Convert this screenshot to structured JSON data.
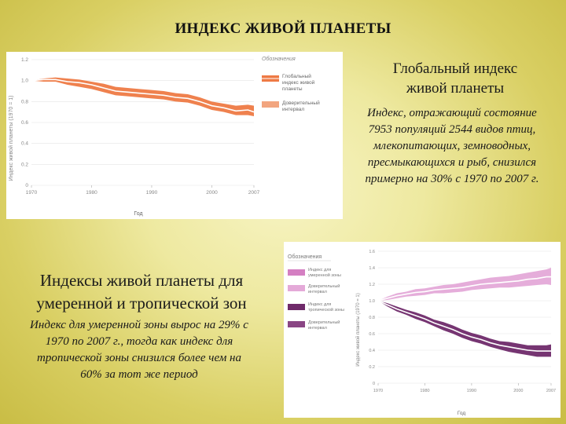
{
  "slide": {
    "title": "ИНДЕКС ЖИВОЙ ПЛАНЕТЫ",
    "global_heading_line1": "Глобальный индекс",
    "global_heading_line2": "живой планеты",
    "global_text": [
      "Индекс, отражающий состояние",
      "7953 популяций 2544 видов птиц,",
      "млекопитающих, земноводных,",
      "пресмыкающихся и рыб, снизился",
      "примерно на 30% с 1970 по 2007 г."
    ],
    "zones_heading_line1": "Индексы живой планеты для",
    "zones_heading_line2": "умеренной и тропической зон",
    "zones_text": [
      "Индекс для умеренной зоны вырос на 29% с",
      "1970 по 2007 г., тогда как индекс для",
      "тропической зоны снизился более чем на",
      "60% за тот же период"
    ]
  },
  "chart_data": [
    {
      "type": "line",
      "title": "",
      "xlabel": "Год",
      "ylabel": "Индекс живой планеты (1970 = 1)",
      "xlim": [
        1970,
        2007
      ],
      "ylim": [
        0,
        1.2
      ],
      "x_ticks": [
        "1970",
        "1980",
        "1990",
        "2000",
        "2007"
      ],
      "y_ticks": [
        "0",
        "0.2",
        "0.4",
        "0.6",
        "0.8",
        "1.0",
        "1.2"
      ],
      "legend_title": "Обозначения",
      "legend_position": "right",
      "colors": {
        "line": "#ee7a45",
        "band": "#f2a57f"
      },
      "series": [
        {
          "name": "Глобальный индекс живой планеты",
          "x": [
            1970,
            1972,
            1974,
            1976,
            1978,
            1980,
            1982,
            1984,
            1986,
            1988,
            1990,
            1992,
            1994,
            1996,
            1998,
            2000,
            2002,
            2004,
            2006,
            2007
          ],
          "values": [
            1.0,
            1.01,
            1.01,
            0.99,
            0.98,
            0.96,
            0.93,
            0.9,
            0.89,
            0.88,
            0.87,
            0.86,
            0.84,
            0.83,
            0.8,
            0.76,
            0.74,
            0.71,
            0.72,
            0.7
          ],
          "lower": [
            1.0,
            0.99,
            0.99,
            0.96,
            0.94,
            0.92,
            0.89,
            0.86,
            0.85,
            0.84,
            0.83,
            0.82,
            0.8,
            0.79,
            0.76,
            0.72,
            0.7,
            0.67,
            0.67,
            0.66
          ],
          "upper": [
            1.0,
            1.02,
            1.03,
            1.02,
            1.01,
            0.99,
            0.97,
            0.94,
            0.93,
            0.92,
            0.91,
            0.9,
            0.88,
            0.87,
            0.84,
            0.8,
            0.78,
            0.76,
            0.77,
            0.76
          ]
        }
      ],
      "legend": [
        "Глобальный индекс живой планеты",
        "Доверительный интервал"
      ]
    },
    {
      "type": "line",
      "title": "",
      "xlabel": "Год",
      "ylabel": "Индекс живой планеты (1970 = 1)",
      "xlim": [
        1970,
        2007
      ],
      "ylim": [
        0,
        1.6
      ],
      "x_ticks": [
        "1970",
        "1980",
        "1990",
        "2000",
        "2007"
      ],
      "y_ticks": [
        "0",
        "0.2",
        "0.4",
        "0.6",
        "0.8",
        "1.0",
        "1.2",
        "1.4",
        "1.6"
      ],
      "legend_title": "Обозначения",
      "legend_position": "left",
      "colors": {
        "temperate": "#d47fc2",
        "temperate_band": "#e4a9d8",
        "tropical": "#6f2a6a",
        "tropical_band": "#8a4684"
      },
      "series": [
        {
          "name": "Индекс для умеренной зоны",
          "x": [
            1970,
            1972,
            1974,
            1976,
            1978,
            1980,
            1982,
            1984,
            1986,
            1988,
            1990,
            1992,
            1994,
            1996,
            1998,
            2000,
            2002,
            2004,
            2006,
            2007
          ],
          "values": [
            1.0,
            1.03,
            1.06,
            1.08,
            1.1,
            1.11,
            1.13,
            1.14,
            1.15,
            1.16,
            1.18,
            1.2,
            1.21,
            1.22,
            1.23,
            1.24,
            1.26,
            1.27,
            1.29,
            1.29
          ],
          "lower": [
            1.0,
            1.01,
            1.03,
            1.05,
            1.06,
            1.07,
            1.09,
            1.09,
            1.1,
            1.11,
            1.13,
            1.14,
            1.15,
            1.16,
            1.16,
            1.17,
            1.18,
            1.19,
            1.2,
            1.19
          ],
          "upper": [
            1.0,
            1.05,
            1.09,
            1.11,
            1.14,
            1.15,
            1.17,
            1.19,
            1.2,
            1.22,
            1.24,
            1.26,
            1.28,
            1.29,
            1.3,
            1.32,
            1.34,
            1.36,
            1.38,
            1.4
          ]
        },
        {
          "name": "Индекс для тропической зоны",
          "x": [
            1970,
            1972,
            1974,
            1976,
            1978,
            1980,
            1982,
            1984,
            1986,
            1988,
            1990,
            1992,
            1994,
            1996,
            1998,
            2000,
            2002,
            2004,
            2006,
            2007
          ],
          "values": [
            1.0,
            0.95,
            0.9,
            0.86,
            0.82,
            0.78,
            0.73,
            0.69,
            0.65,
            0.6,
            0.56,
            0.53,
            0.49,
            0.46,
            0.44,
            0.42,
            0.4,
            0.39,
            0.39,
            0.39
          ],
          "lower": [
            1.0,
            0.93,
            0.87,
            0.83,
            0.78,
            0.74,
            0.69,
            0.64,
            0.6,
            0.55,
            0.51,
            0.48,
            0.44,
            0.41,
            0.38,
            0.36,
            0.34,
            0.32,
            0.32,
            0.32
          ],
          "upper": [
            1.0,
            0.97,
            0.93,
            0.89,
            0.86,
            0.82,
            0.77,
            0.74,
            0.7,
            0.65,
            0.61,
            0.58,
            0.54,
            0.51,
            0.5,
            0.48,
            0.46,
            0.46,
            0.46,
            0.47
          ]
        }
      ],
      "legend": [
        "Индекс для умеренной зоны",
        "Доверительный интервал",
        "Индекс для тропической зоны",
        "Доверительный интервал"
      ]
    }
  ]
}
